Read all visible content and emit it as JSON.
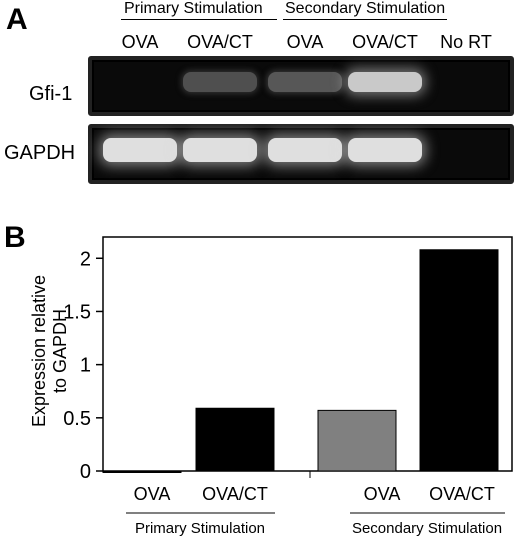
{
  "panel_a": {
    "letter": "A",
    "group_labels": [
      "Primary Stimulation",
      "Secondary Stimulation"
    ],
    "lanes": [
      "OVA",
      "OVA/CT",
      "OVA",
      "OVA/CT",
      "No RT"
    ],
    "rows": [
      {
        "label": "Gfi-1",
        "band_intensities": [
          0.0,
          0.18,
          0.22,
          0.75,
          0.0
        ]
      },
      {
        "label": "GAPDH",
        "band_intensities": [
          0.85,
          0.85,
          0.85,
          0.85,
          0.0
        ]
      }
    ]
  },
  "panel_b": {
    "letter": "B",
    "ylabel_lines": [
      "Expression relative",
      "to GAPDH"
    ],
    "group_labels": [
      "Primary Stimulation",
      "Secondary Stimulation"
    ]
  },
  "chart_data": {
    "type": "bar",
    "categories": [
      "OVA",
      "OVA/CT",
      "OVA",
      "OVA/CT"
    ],
    "groups": [
      "Primary Stimulation",
      "Primary Stimulation",
      "Secondary Stimulation",
      "Secondary Stimulation"
    ],
    "values": [
      0,
      0.59,
      0.57,
      2.08
    ],
    "colors": [
      "#000000",
      "#000000",
      "#808080",
      "#000000"
    ],
    "xlabel": "",
    "ylabel": "Expression relative to GAPDH",
    "ylim": [
      0,
      2.2
    ],
    "yticks": [
      0,
      0.5,
      1,
      1.5,
      2
    ],
    "ytick_labels": [
      "0",
      "0.5",
      "1",
      "1.5",
      "2"
    ],
    "grid": false
  }
}
